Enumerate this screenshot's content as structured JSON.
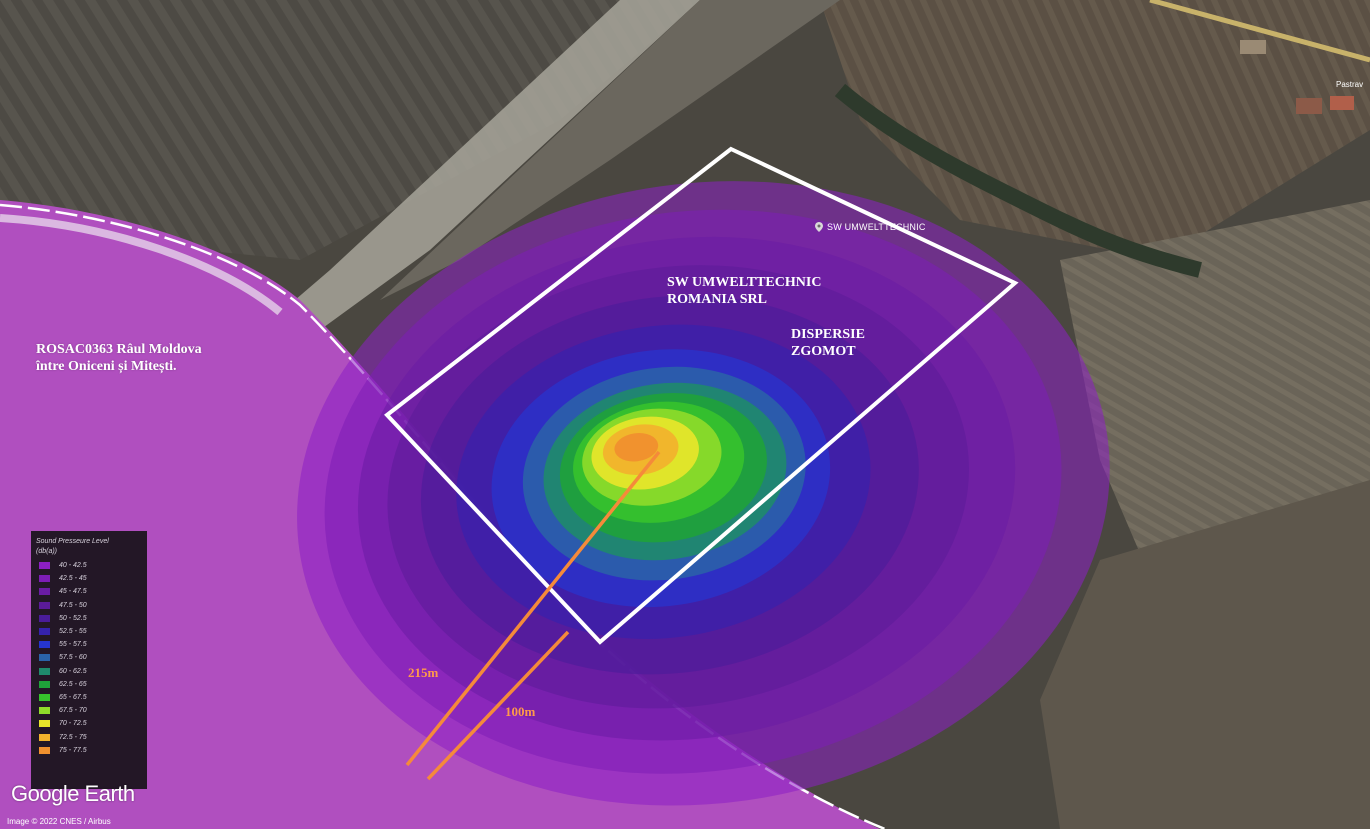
{
  "map": {
    "protected_area_label": {
      "line1": "ROSAC0363 Râul Moldova",
      "line2": "între Oniceni și Mitești."
    },
    "site_label": {
      "line1": "SW UMWELTTECHNIC",
      "line2": "ROMANIA SRL"
    },
    "dispersion_label": {
      "line1": "DISPERSIE",
      "line2": "ZGOMOT"
    },
    "placemark_label": "SW UMWELTTECHNIC",
    "village_label": "Pastrav",
    "distance_labels": {
      "far": "215m",
      "near": "100m"
    },
    "colors": {
      "protected_area": "#b04fbf",
      "site_boundary": "#ffffff",
      "distance_lines": "#f58a3a",
      "terrain_base": "#4a4740"
    }
  },
  "legend": {
    "title": "Sound Presseure Level",
    "unit": "(db(a))",
    "items": [
      {
        "range": "40 - 42.5",
        "color": "#8c1fc4"
      },
      {
        "range": "42.5 - 45",
        "color": "#7d1db6"
      },
      {
        "range": "45 - 47.5",
        "color": "#6a1ca4"
      },
      {
        "range": "47.5 - 50",
        "color": "#5b1b99"
      },
      {
        "range": "50 - 52.5",
        "color": "#4a1c9a"
      },
      {
        "range": "52.5 - 55",
        "color": "#3522ae"
      },
      {
        "range": "55 - 57.5",
        "color": "#2635d0"
      },
      {
        "range": "57.5 - 60",
        "color": "#2a63a8"
      },
      {
        "range": "60 - 62.5",
        "color": "#1f8a6c"
      },
      {
        "range": "62.5 - 65",
        "color": "#1fa23a"
      },
      {
        "range": "65 - 67.5",
        "color": "#36c22c"
      },
      {
        "range": "67.5 - 70",
        "color": "#8fdb2a"
      },
      {
        "range": "70 - 72.5",
        "color": "#e8e62a"
      },
      {
        "range": "72.5 - 75",
        "color": "#f2b22c"
      },
      {
        "range": "75 - 77.5",
        "color": "#f0902e"
      }
    ]
  },
  "footer": {
    "logo": "Google Earth",
    "copyright": "Image © 2022 CNES / Airbus"
  }
}
